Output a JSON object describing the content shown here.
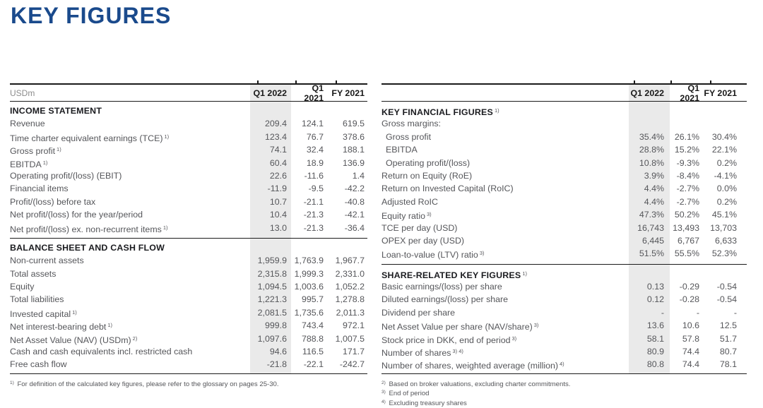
{
  "page": {
    "title": "KEY FIGURES"
  },
  "columns": [
    "Q1 2022",
    "Q1 2021",
    "FY 2021"
  ],
  "colors": {
    "accent_blue": "#1A4A8C",
    "highlight_column": "#EAEAEA",
    "body_text": "#55565A",
    "heading_text": "#1B1C20"
  },
  "tables": [
    {
      "id": "left",
      "unit_label": "USDm",
      "sections": [
        {
          "heading": "INCOME STATEMENT",
          "heading_sup": "",
          "rows": [
            {
              "label": "Revenue",
              "sup": "",
              "values": [
                "209.4",
                "124.1",
                "619.5"
              ]
            },
            {
              "label": "Time charter equivalent earnings (TCE)",
              "sup": "1)",
              "values": [
                "123.4",
                "76.7",
                "378.6"
              ]
            },
            {
              "label": "Gross profit",
              "sup": "1)",
              "values": [
                "74.1",
                "32.4",
                "188.1"
              ]
            },
            {
              "label": "EBITDA",
              "sup": "1)",
              "values": [
                "60.4",
                "18.9",
                "136.9"
              ]
            },
            {
              "label": "Operating profit/(loss) (EBIT)",
              "sup": "",
              "values": [
                "22.6",
                "-11.6",
                "1.4"
              ]
            },
            {
              "label": "Financial items",
              "sup": "",
              "values": [
                "-11.9",
                "-9.5",
                "-42.2"
              ]
            },
            {
              "label": "Profit/(loss) before tax",
              "sup": "",
              "values": [
                "10.7",
                "-21.1",
                "-40.8"
              ]
            },
            {
              "label": "Net profit/(loss) for the year/period",
              "sup": "",
              "values": [
                "10.4",
                "-21.3",
                "-42.1"
              ]
            },
            {
              "label": "Net profit/(loss) ex. non-recurrent items",
              "sup": "1)",
              "values": [
                "13.0",
                "-21.3",
                "-36.4"
              ]
            }
          ]
        },
        {
          "heading": "BALANCE SHEET AND CASH FLOW",
          "heading_sup": "",
          "rows": [
            {
              "label": "Non-current assets",
              "sup": "",
              "values": [
                "1,959.9",
                "1,763.9",
                "1,967.7"
              ]
            },
            {
              "label": "Total assets",
              "sup": "",
              "values": [
                "2,315.8",
                "1,999.3",
                "2,331.0"
              ]
            },
            {
              "label": "Equity",
              "sup": "",
              "values": [
                "1,094.5",
                "1,003.6",
                "1,052.2"
              ]
            },
            {
              "label": "Total liabilities",
              "sup": "",
              "values": [
                "1,221.3",
                "995.7",
                "1,278.8"
              ]
            },
            {
              "label": "Invested capital",
              "sup": "1)",
              "values": [
                "2,081.5",
                "1,735.6",
                "2,011.3"
              ]
            },
            {
              "label": "Net interest-bearing debt",
              "sup": "1)",
              "values": [
                "999.8",
                "743.4",
                "972.1"
              ]
            },
            {
              "label": "Net Asset Value (NAV) (USDm)",
              "sup": "2)",
              "values": [
                "1,097.6",
                "788.8",
                "1,007.5"
              ]
            },
            {
              "label": "Cash and cash equivalents incl. restricted cash",
              "sup": "",
              "values": [
                "94.6",
                "116.5",
                "171.7"
              ]
            },
            {
              "label": "Free cash flow",
              "sup": "",
              "values": [
                "-21.8",
                "-22.1",
                "-242.7"
              ]
            }
          ]
        }
      ],
      "footnotes": [
        {
          "sup": "1)",
          "text": "For definition of the calculated key figures, please refer to the glossary on pages 25-30."
        }
      ]
    },
    {
      "id": "right",
      "unit_label": "",
      "sections": [
        {
          "heading": "KEY FINANCIAL FIGURES",
          "heading_sup": "1)",
          "rows": [
            {
              "label": "Gross margins:",
              "sup": "",
              "values": [
                "",
                "",
                ""
              ]
            },
            {
              "label": "Gross profit",
              "sup": "",
              "indent": true,
              "values": [
                "35.4%",
                "26.1%",
                "30.4%"
              ]
            },
            {
              "label": "EBITDA",
              "sup": "",
              "indent": true,
              "values": [
                "28.8%",
                "15.2%",
                "22.1%"
              ]
            },
            {
              "label": "Operating profit/(loss)",
              "sup": "",
              "indent": true,
              "values": [
                "10.8%",
                "-9.3%",
                "0.2%"
              ]
            },
            {
              "label": "Return on Equity (RoE)",
              "sup": "",
              "values": [
                "3.9%",
                "-8.4%",
                "-4.1%"
              ]
            },
            {
              "label": "Return on Invested Capital (RoIC)",
              "sup": "",
              "values": [
                "4.4%",
                "-2.7%",
                "0.0%"
              ]
            },
            {
              "label": "Adjusted RoIC",
              "sup": "",
              "values": [
                "4.4%",
                "-2.7%",
                "0.2%"
              ]
            },
            {
              "label": "Equity ratio",
              "sup": "3)",
              "values": [
                "47.3%",
                "50.2%",
                "45.1%"
              ]
            },
            {
              "label": "TCE per day (USD)",
              "sup": "",
              "values": [
                "16,743",
                "13,493",
                "13,703"
              ]
            },
            {
              "label": "OPEX per day (USD)",
              "sup": "",
              "values": [
                "6,445",
                "6,767",
                "6,633"
              ]
            },
            {
              "label": "Loan-to-value (LTV) ratio",
              "sup": "3)",
              "values": [
                "51.5%",
                "55.5%",
                "52.3%"
              ]
            }
          ]
        },
        {
          "heading": "SHARE-RELATED KEY FIGURES",
          "heading_sup": "1)",
          "rows": [
            {
              "label": "Basic earnings/(loss) per share",
              "sup": "",
              "values": [
                "0.13",
                "-0.29",
                "-0.54"
              ]
            },
            {
              "label": "Diluted earnings/(loss) per share",
              "sup": "",
              "values": [
                "0.12",
                "-0.28",
                "-0.54"
              ]
            },
            {
              "label": "Dividend per share",
              "sup": "",
              "values": [
                "-",
                "-",
                "-"
              ]
            },
            {
              "label": "Net Asset Value per share (NAV/share)",
              "sup": "3)",
              "values": [
                "13.6",
                "10.6",
                "12.5"
              ]
            },
            {
              "label": "Stock price in DKK, end of period",
              "sup": "3)",
              "values": [
                "58.1",
                "57.8",
                "51.7"
              ]
            },
            {
              "label": "Number of shares",
              "sup": "3) 4)",
              "values": [
                "80.9",
                "74.4",
                "80.7"
              ]
            },
            {
              "label": "Number of shares, weighted average (million)",
              "sup": "4)",
              "values": [
                "80.8",
                "74.4",
                "78.1"
              ]
            }
          ]
        }
      ],
      "footnotes": [
        {
          "sup": "2)",
          "text": "Based on broker valuations, excluding charter commitments."
        },
        {
          "sup": "3)",
          "text": "End of period"
        },
        {
          "sup": "4)",
          "text": "Excluding treasury shares"
        }
      ]
    }
  ]
}
